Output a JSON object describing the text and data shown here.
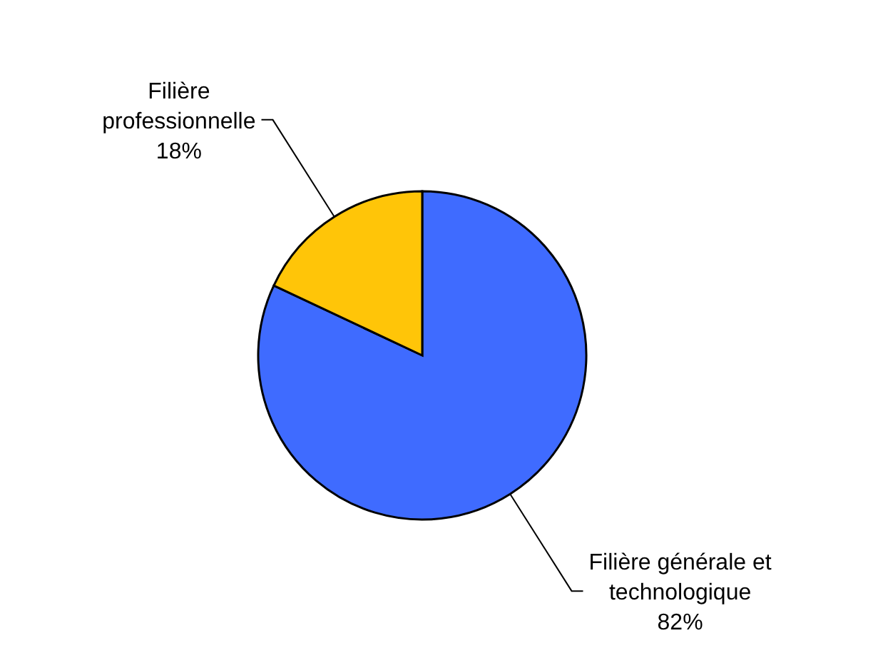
{
  "chart_data": {
    "type": "pie",
    "categories": [
      "Filière générale et technologique",
      "Filière professionnelle"
    ],
    "values": [
      82,
      18
    ],
    "colors": [
      "#3f6bff",
      "#ffc508"
    ],
    "value_labels": [
      "82%",
      "18%"
    ]
  }
}
